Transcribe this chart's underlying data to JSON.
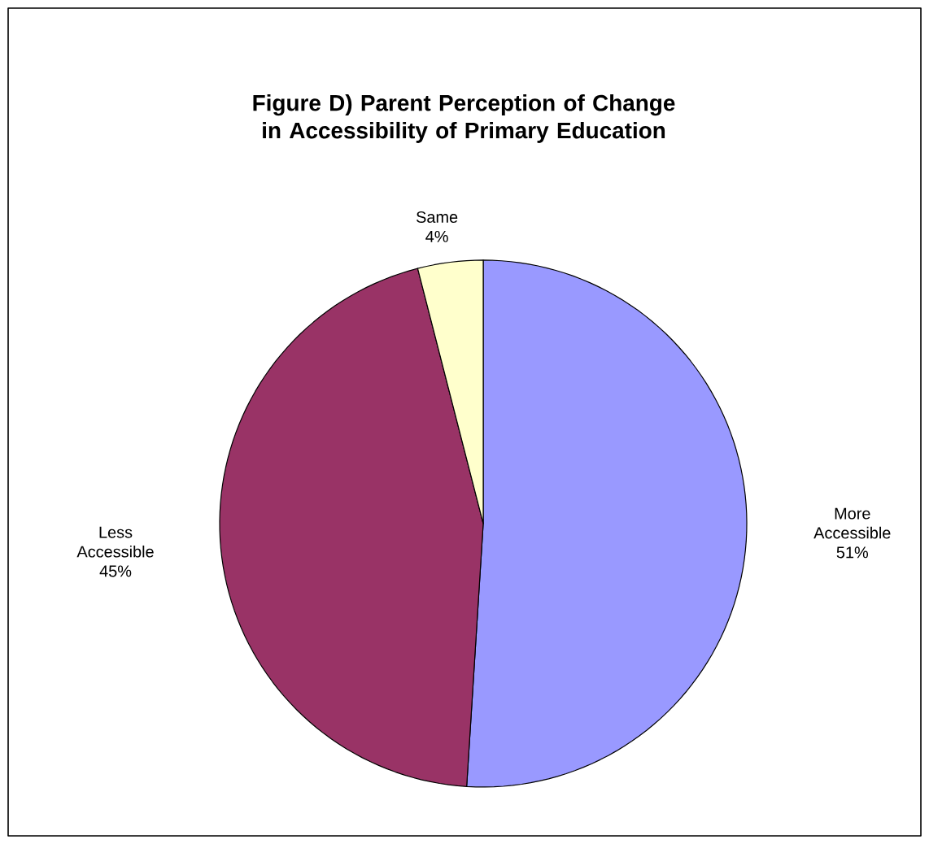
{
  "chart_data": {
    "type": "pie",
    "title": "Figure D) Parent Perception of Change in Accessibility of Primary Education",
    "categories": [
      "More Accessible",
      "Less Accessible",
      "Same"
    ],
    "values": [
      51,
      45,
      4
    ],
    "colors": [
      "#9999ff",
      "#993366",
      "#ffffcc"
    ],
    "value_labels": [
      "51%",
      "45%",
      "4%"
    ]
  }
}
